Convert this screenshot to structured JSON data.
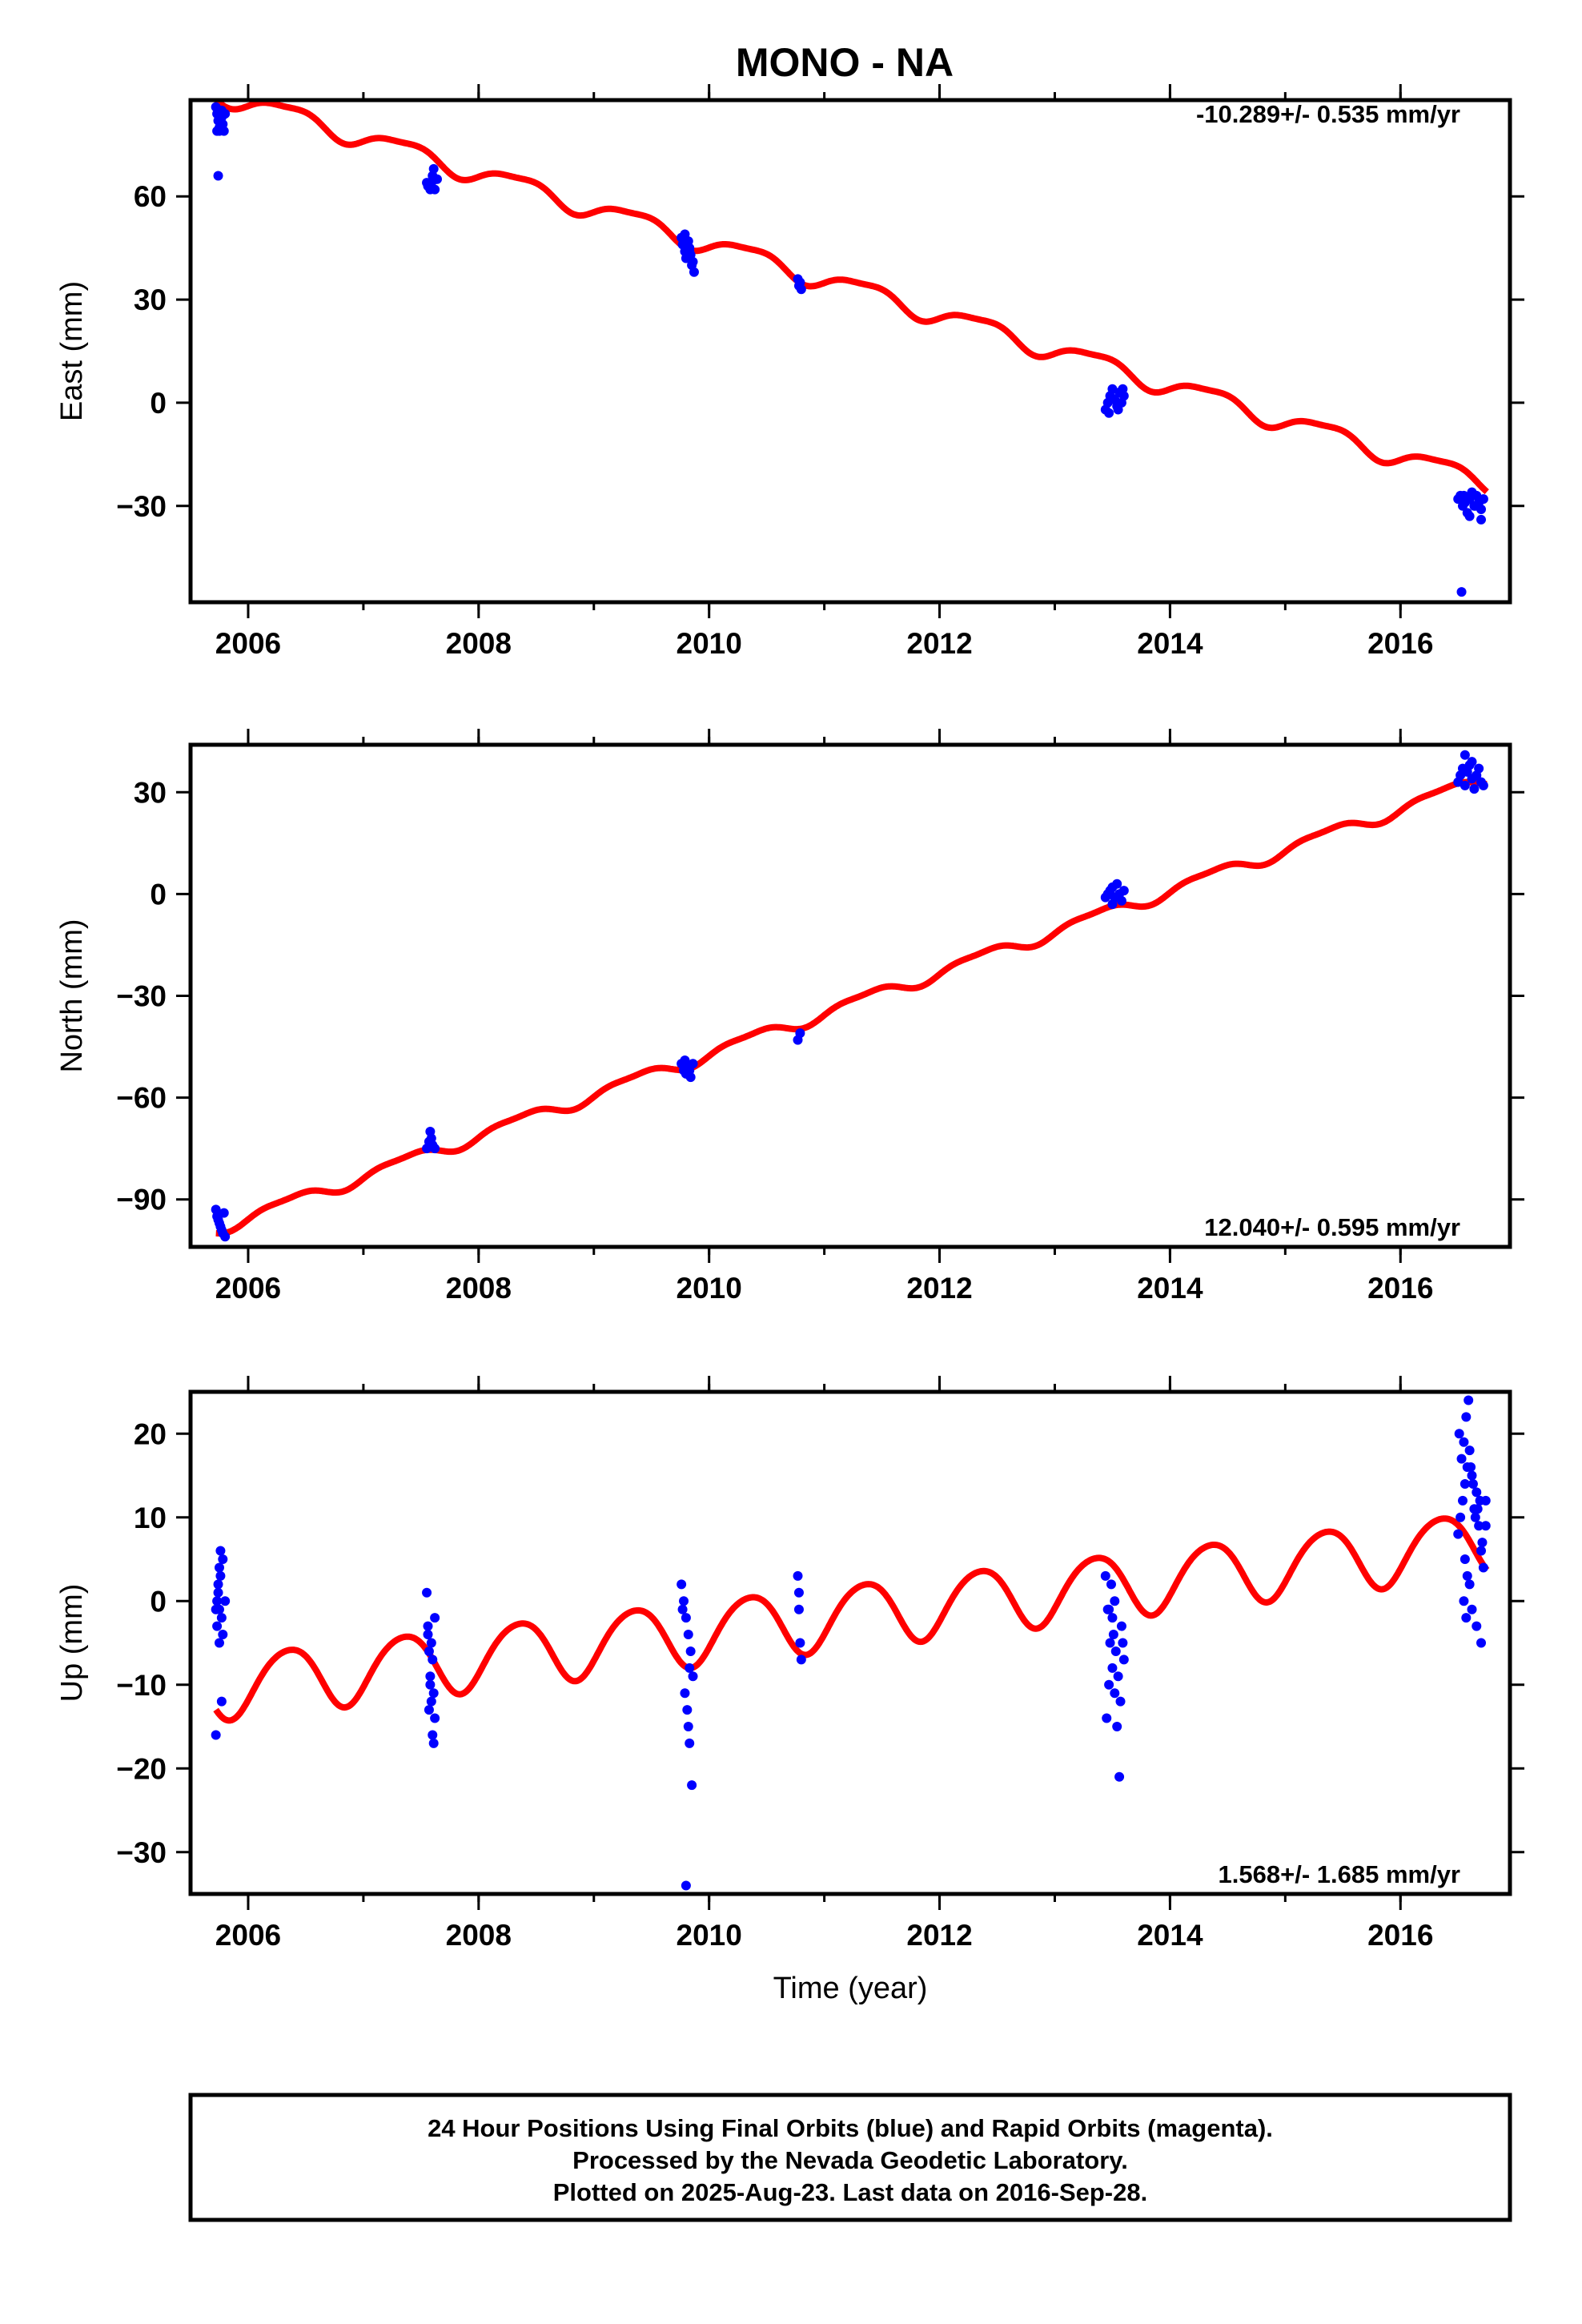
{
  "title": "MONO - NA",
  "colors": {
    "observed": "#0000ff",
    "model": "#ff0000",
    "frame": "#000000"
  },
  "footer": {
    "line1": "24 Hour Positions Using Final Orbits (blue) and Rapid Orbits (magenta).",
    "line2": "Processed by the Nevada Geodetic Laboratory.",
    "line3": "Plotted on 2025-Aug-23. Last data on 2016-Sep-28."
  },
  "chart_data": [
    {
      "type": "scatter",
      "ylabel": "East (mm)",
      "xlabel": "",
      "rate_label": "-10.289+/- 0.535 mm/yr",
      "rate_position": "top-right",
      "xlim": [
        2005.5,
        2016.95
      ],
      "ylim": [
        -58,
        88
      ],
      "x_ticks": [
        2006,
        2008,
        2010,
        2012,
        2014,
        2016
      ],
      "y_ticks": [
        60,
        30,
        0,
        -30
      ],
      "grid": false,
      "series": [
        {
          "kind": "points",
          "x": [
            2005.72,
            2005.73,
            2005.74,
            2005.75,
            2005.76,
            2005.77,
            2005.78,
            2005.8,
            2005.73,
            2005.75,
            2005.79,
            2005.77,
            2005.74,
            2007.55,
            2007.57,
            2007.58,
            2007.6,
            2007.61,
            2007.63,
            2007.56,
            2007.59,
            2007.62,
            2007.64,
            2009.76,
            2009.77,
            2009.79,
            2009.8,
            2009.82,
            2009.83,
            2009.85,
            2009.87,
            2009.78,
            2009.81,
            2009.84,
            2009.86,
            2009.79,
            2009.83,
            2010.77,
            2010.78,
            2010.79,
            2010.8,
            2013.44,
            2013.46,
            2013.48,
            2013.5,
            2013.52,
            2013.54,
            2013.56,
            2013.58,
            2013.6,
            2013.47,
            2013.51,
            2013.55,
            2013.59,
            2016.5,
            2016.52,
            2016.54,
            2016.56,
            2016.58,
            2016.6,
            2016.62,
            2016.64,
            2016.66,
            2016.68,
            2016.7,
            2016.72,
            2016.55,
            2016.6,
            2016.65,
            2016.7,
            2016.53
          ],
          "y": [
            86,
            84,
            82,
            80,
            83,
            85,
            81,
            84,
            79,
            79,
            79,
            83,
            66,
            64,
            63,
            62,
            66,
            68,
            65,
            63,
            64,
            62,
            65,
            48,
            46,
            44,
            42,
            47,
            45,
            40,
            38,
            48,
            46,
            43,
            41,
            49,
            44,
            36,
            34,
            35,
            33,
            -2,
            0,
            2,
            4,
            1,
            -1,
            3,
            0,
            2,
            -3,
            1,
            -2,
            4,
            -28,
            -27,
            -30,
            -29,
            -32,
            -28,
            -26,
            -30,
            -27,
            -29,
            -31,
            -28,
            -27,
            -33,
            -30,
            -34,
            -55
          ]
        },
        {
          "kind": "model",
          "rate": -10.289,
          "t0": 2011.0,
          "offset": 36.0,
          "annual_amp": 2.8,
          "semiannual_amp": 0.8,
          "x_range": [
            2005.72,
            2016.75
          ]
        }
      ]
    },
    {
      "type": "scatter",
      "ylabel": "North (mm)",
      "xlabel": "",
      "rate_label": "12.040+/- 0.595 mm/yr",
      "rate_position": "bottom-right",
      "xlim": [
        2005.5,
        2016.95
      ],
      "ylim": [
        -104,
        44
      ],
      "x_ticks": [
        2006,
        2008,
        2010,
        2012,
        2014,
        2016
      ],
      "y_ticks": [
        30,
        0,
        -30,
        -60,
        -90
      ],
      "grid": false,
      "series": [
        {
          "kind": "points",
          "x": [
            2005.72,
            2005.73,
            2005.75,
            2005.76,
            2005.78,
            2005.8,
            2005.74,
            2005.77,
            2005.79,
            2007.55,
            2007.57,
            2007.59,
            2007.6,
            2007.62,
            2007.58,
            2009.76,
            2009.78,
            2009.8,
            2009.82,
            2009.84,
            2009.86,
            2009.79,
            2009.83,
            2010.77,
            2010.79,
            2013.44,
            2013.46,
            2013.48,
            2013.5,
            2013.52,
            2013.54,
            2013.56,
            2013.58,
            2013.6,
            2013.5,
            2016.5,
            2016.52,
            2016.54,
            2016.56,
            2016.58,
            2016.6,
            2016.62,
            2016.64,
            2016.66,
            2016.68,
            2016.7,
            2016.72,
            2016.56,
            2016.62
          ],
          "y": [
            -93,
            -95,
            -97,
            -98,
            -100,
            -101,
            -96,
            -99,
            -94,
            -75,
            -73,
            -72,
            -74,
            -75,
            -70,
            -50,
            -52,
            -53,
            -51,
            -54,
            -50,
            -49,
            -52,
            -43,
            -41,
            -1,
            0,
            1,
            2,
            -1,
            3,
            0,
            -2,
            1,
            -3,
            33,
            35,
            37,
            32,
            36,
            38,
            34,
            31,
            35,
            37,
            33,
            32,
            41,
            39
          ]
        },
        {
          "kind": "model",
          "rate": 12.04,
          "t0": 2011.0,
          "offset": -35.0,
          "annual_amp": 1.8,
          "semiannual_amp": 0.6,
          "x_range": [
            2005.72,
            2016.75
          ]
        }
      ]
    },
    {
      "type": "scatter",
      "ylabel": "Up (mm)",
      "xlabel": "Time (year)",
      "rate_label": "1.568+/- 1.685 mm/yr",
      "rate_position": "bottom-right",
      "xlim": [
        2005.5,
        2016.95
      ],
      "ylim": [
        -35,
        25
      ],
      "x_ticks": [
        2006,
        2008,
        2010,
        2012,
        2014,
        2016
      ],
      "y_ticks": [
        20,
        10,
        0,
        -10,
        -20,
        -30
      ],
      "grid": false,
      "series": [
        {
          "kind": "points",
          "x": [
            2005.72,
            2005.73,
            2005.74,
            2005.75,
            2005.76,
            2005.77,
            2005.78,
            2005.74,
            2005.75,
            2005.76,
            2005.73,
            2005.77,
            2005.78,
            2005.72,
            2005.8,
            2005.75,
            2007.55,
            2007.56,
            2007.57,
            2007.58,
            2007.59,
            2007.6,
            2007.61,
            2007.62,
            2007.56,
            2007.58,
            2007.6,
            2007.62,
            2007.57,
            2007.59,
            2007.61,
            2009.76,
            2009.78,
            2009.8,
            2009.82,
            2009.84,
            2009.86,
            2009.79,
            2009.81,
            2009.83,
            2009.85,
            2009.8,
            2009.82,
            2009.77,
            2009.83,
            2010.77,
            2010.78,
            2010.79,
            2010.8,
            2010.78,
            2013.44,
            2013.46,
            2013.48,
            2013.5,
            2013.52,
            2013.54,
            2013.56,
            2013.58,
            2013.6,
            2013.47,
            2013.49,
            2013.51,
            2013.53,
            2013.55,
            2013.57,
            2013.45,
            2013.5,
            2013.59,
            2013.52,
            2013.47,
            2016.5,
            2016.52,
            2016.54,
            2016.56,
            2016.58,
            2016.6,
            2016.62,
            2016.64,
            2016.66,
            2016.68,
            2016.7,
            2016.72,
            2016.74,
            2016.51,
            2016.53,
            2016.55,
            2016.57,
            2016.59,
            2016.61,
            2016.63,
            2016.65,
            2016.67,
            2016.69,
            2016.71,
            2016.56,
            2016.58,
            2016.6,
            2016.55,
            2016.62,
            2016.57,
            2016.66,
            2016.7,
            2016.74
          ],
          "y": [
            -16,
            0,
            2,
            4,
            6,
            -2,
            -4,
            1,
            -1,
            3,
            -3,
            -12,
            5,
            -1,
            0,
            -5,
            1,
            -3,
            -6,
            -9,
            -12,
            -16,
            -17,
            -14,
            -4,
            -10,
            -7,
            -2,
            -13,
            -5,
            -11,
            2,
            0,
            -2,
            -4,
            -6,
            -9,
            -11,
            -13,
            -17,
            -22,
            -34,
            -15,
            -1,
            -8,
            3,
            -1,
            -5,
            -7,
            1,
            3,
            -1,
            -5,
            -8,
            -11,
            -15,
            -21,
            -3,
            -7,
            -10,
            2,
            -4,
            -6,
            -9,
            -12,
            -14,
            -2,
            -5,
            0,
            -1,
            8,
            10,
            12,
            14,
            16,
            18,
            15,
            11,
            13,
            9,
            6,
            4,
            12,
            20,
            17,
            19,
            22,
            24,
            16,
            14,
            10,
            11,
            12,
            7,
            5,
            3,
            2,
            0,
            -1,
            -2,
            -3,
            -5,
            9
          ]
        },
        {
          "kind": "model",
          "rate": 1.568,
          "t0": 2011.0,
          "offset": -2.0,
          "annual_amp": 3.8,
          "semiannual_amp": 0.4,
          "x_range": [
            2005.72,
            2016.75
          ]
        }
      ]
    }
  ]
}
